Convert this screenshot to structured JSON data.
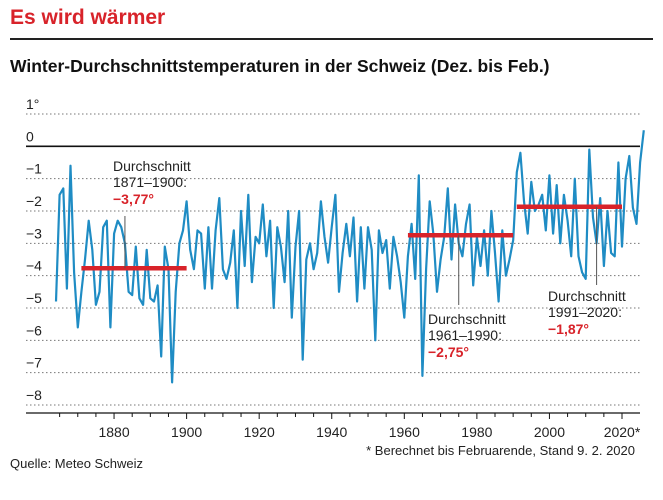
{
  "header": {
    "headline": "Es wird wärmer",
    "title": "Winter-Durchschnittstemperaturen in der Schweiz (Dez. bis Feb.)"
  },
  "footer": {
    "source": "Quelle: Meteo Schweiz",
    "footnote": "* Berechnet bis Februarende, Stand 9. 2. 2020"
  },
  "colors": {
    "line": "#1f8cc4",
    "average": "#d8232a",
    "headline": "#d8232a"
  },
  "chart_data": {
    "type": "line",
    "title": "Winter-Durchschnittstemperaturen in der Schweiz (Dez. bis Feb.)",
    "xlabel": "",
    "ylabel": "",
    "xlim": [
      1864,
      2020
    ],
    "ylim": [
      -8,
      1
    ],
    "grid": true,
    "y_ticks": [
      "1°",
      "0",
      "−1",
      "−2",
      "−3",
      "−4",
      "−5",
      "−6",
      "−7",
      "−8"
    ],
    "y_tick_values": [
      1,
      0,
      -1,
      -2,
      -3,
      -4,
      -5,
      -6,
      -7,
      -8
    ],
    "x_ticks": [
      "1880",
      "1900",
      "1920",
      "1940",
      "1960",
      "1980",
      "2000",
      "2020*"
    ],
    "x_tick_values": [
      1880,
      1900,
      1920,
      1940,
      1960,
      1980,
      2000,
      2020
    ],
    "series": [
      {
        "x_start": 1864,
        "values": [
          -4.8,
          -1.5,
          -1.3,
          -4.4,
          -0.6,
          -3.9,
          -5.6,
          -4.5,
          -3.5,
          -2.3,
          -3.2,
          -4.9,
          -4.5,
          -2.5,
          -2.3,
          -5.6,
          -2.7,
          -2.3,
          -2.5,
          -3.0,
          -4.5,
          -4.6,
          -3.1,
          -4.7,
          -4.9,
          -3.2,
          -4.7,
          -4.8,
          -4.3,
          -6.5,
          -3.1,
          -3.8,
          -7.3,
          -4.5,
          -3.0,
          -2.6,
          -1.7,
          -3.2,
          -3.8,
          -2.6,
          -2.7,
          -4.4,
          -2.5,
          -4.4,
          -2.6,
          -1.6,
          -3.8,
          -4.1,
          -3.6,
          -2.6,
          -5.0,
          -2.0,
          -3.7,
          -1.5,
          -4.2,
          -2.8,
          -3.0,
          -1.8,
          -3.4,
          -2.3,
          -5.0,
          -2.5,
          -3.1,
          -4.2,
          -2.0,
          -5.3,
          -3.1,
          -2.0,
          -6.6,
          -3.5,
          -3.0,
          -3.8,
          -3.3,
          -1.7,
          -2.8,
          -3.6,
          -2.5,
          -1.5,
          -4.5,
          -3.3,
          -2.4,
          -3.4,
          -2.2,
          -4.8,
          -2.5,
          -4.4,
          -2.5,
          -3.2,
          -6.0,
          -2.6,
          -3.3,
          -2.9,
          -4.4,
          -2.8,
          -3.4,
          -4.2,
          -5.3,
          -3.4,
          -2.4,
          -4.1,
          -0.9,
          -7.1,
          -3.8,
          -1.7,
          -2.7,
          -4.5,
          -3.5,
          -2.8,
          -1.3,
          -3.5,
          -1.8,
          -3.0,
          -3.4,
          -2.4,
          -1.8,
          -4.3,
          -2.8,
          -3.7,
          -2.6,
          -4.0,
          -2.0,
          -3.3,
          -4.8,
          -2.6,
          -4.0,
          -3.5,
          -2.9,
          -0.8,
          -0.2,
          -1.7,
          -2.7,
          -1.1,
          -2.0,
          -1.8,
          -1.5,
          -2.6,
          -0.9,
          -2.7,
          -1.2,
          -3.0,
          -1.5,
          -2.3,
          -3.4,
          -1.0,
          -3.4,
          -3.9,
          -4.1,
          -0.1,
          -2.2,
          -3.0,
          -1.6,
          -3.7,
          -2.0,
          -3.3,
          -3.4,
          -0.5,
          -3.1,
          -1.0,
          -0.3,
          -1.9,
          -2.4,
          -0.5,
          0.5
        ]
      }
    ],
    "averages": [
      {
        "label": "Durchschnitt",
        "period": "1871–1900:",
        "value_label": "−3,77°",
        "from": 1871,
        "to": 1900,
        "value": -3.77
      },
      {
        "label": "Durchschnitt",
        "period": "1961–1990:",
        "value_label": "−2,75°",
        "from": 1961,
        "to": 1990,
        "value": -2.75
      },
      {
        "label": "Durchschnitt",
        "period": "1991–2020:",
        "value_label": "−1,87°",
        "from": 1991,
        "to": 2020,
        "value": -1.87
      }
    ]
  }
}
